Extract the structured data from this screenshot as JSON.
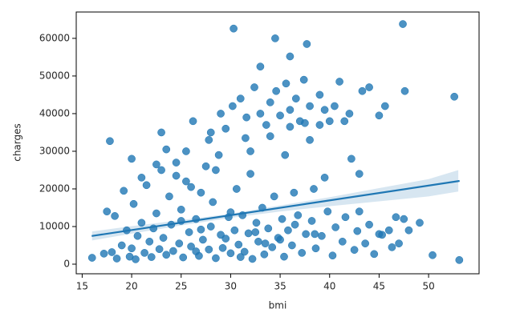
{
  "chart_data": {
    "type": "scatter",
    "x_label": "bmi",
    "y_label": "charges",
    "color": "#1f77b4",
    "x": [
      16.0,
      17.2,
      17.5,
      18.0,
      18.3,
      18.5,
      19.0,
      19.2,
      19.5,
      19.8,
      20.0,
      20.2,
      20.4,
      20.6,
      21.0,
      21.3,
      21.5,
      21.8,
      22.0,
      22.2,
      22.5,
      22.8,
      23.0,
      23.2,
      23.5,
      23.8,
      24.0,
      24.2,
      24.5,
      24.8,
      25.0,
      25.2,
      25.5,
      25.8,
      26.0,
      26.2,
      26.5,
      26.8,
      27.0,
      27.2,
      27.5,
      27.8,
      28.0,
      28.2,
      28.5,
      28.8,
      29.0,
      29.2,
      29.5,
      29.8,
      30.0,
      30.2,
      30.4,
      30.6,
      30.8,
      31.0,
      31.2,
      31.4,
      31.6,
      31.8,
      32.0,
      32.2,
      32.4,
      32.6,
      32.8,
      33.0,
      33.2,
      33.4,
      33.6,
      33.8,
      34.0,
      34.2,
      34.4,
      34.6,
      34.8,
      35.0,
      35.2,
      35.4,
      35.6,
      35.8,
      36.0,
      36.2,
      36.4,
      36.6,
      36.8,
      37.0,
      37.2,
      37.4,
      37.6,
      38.0,
      38.2,
      38.4,
      38.6,
      39.0,
      39.2,
      39.5,
      39.8,
      40.0,
      40.3,
      40.6,
      41.0,
      41.3,
      41.6,
      42.0,
      42.2,
      42.5,
      42.8,
      43.0,
      43.3,
      43.6,
      44.0,
      44.5,
      45.0,
      45.3,
      45.6,
      46.0,
      46.3,
      46.7,
      47.0,
      47.4,
      47.6,
      48.0,
      49.1,
      50.4,
      52.6,
      53.1,
      30.3,
      34.5,
      37.7,
      36.0,
      33.0,
      17.8,
      23.0,
      25.5,
      27.8,
      29.0,
      31.5,
      28.5,
      26.0,
      24.5,
      22.5,
      32.5,
      33.5,
      29.5,
      27.0,
      25.0,
      30.0,
      35.0,
      36.5,
      38.5,
      31.0,
      26.5,
      37.5,
      39.5,
      41.5,
      44.0,
      21.0,
      20.0,
      23.5,
      28.0,
      32.0,
      34.0,
      36.0,
      38.0,
      39.0,
      40.5,
      43.0,
      45.0,
      47.5,
      35.5
    ],
    "values": [
      1700,
      2800,
      14000,
      3200,
      12800,
      1500,
      5000,
      19500,
      9000,
      2000,
      4200,
      16000,
      1300,
      7500,
      11000,
      3000,
      21000,
      6000,
      1900,
      9500,
      13500,
      4000,
      25000,
      7000,
      2500,
      18000,
      10500,
      3500,
      27000,
      5500,
      14500,
      1800,
      22000,
      8500,
      4700,
      38000,
      12000,
      2200,
      19000,
      6500,
      26000,
      3900,
      10000,
      16500,
      1600,
      29000,
      7800,
      4300,
      36000,
      12500,
      2900,
      42000,
      9000,
      20000,
      5200,
      44000,
      13000,
      3300,
      39000,
      8200,
      24000,
      1400,
      47000,
      11000,
      6000,
      40000,
      15000,
      2600,
      37000,
      9500,
      43000,
      4500,
      18000,
      46000,
      7000,
      39500,
      12000,
      2000,
      48000,
      9000,
      41000,
      5000,
      19000,
      44000,
      13000,
      38000,
      3000,
      49000,
      8000,
      42000,
      11500,
      20000,
      4200,
      45000,
      7500,
      23000,
      14000,
      38000,
      2300,
      9800,
      48500,
      6000,
      12500,
      40000,
      28000,
      3800,
      8800,
      24000,
      46000,
      5500,
      10500,
      2700,
      39500,
      7800,
      42000,
      9000,
      4500,
      12500,
      5500,
      63800,
      46000,
      9000,
      11000,
      2400,
      44500,
      1100,
      62600,
      60000,
      58500,
      55200,
      52500,
      32700,
      35000,
      30000,
      33000,
      40000,
      33500,
      25000,
      20500,
      23500,
      26500,
      8500,
      5500,
      6800,
      9200,
      11500,
      13800,
      6500,
      10500,
      8000,
      1900,
      3400,
      37500,
      41000,
      38000,
      47000,
      23000,
      28000,
      30500,
      35000,
      30000,
      34000,
      36500,
      33000,
      37000,
      42000,
      14000,
      8000,
      12000,
      29000
    ],
    "regression": {
      "x": [
        15.96,
        53.13
      ],
      "y": [
        7479,
        22118
      ]
    },
    "ci": {
      "x": [
        16,
        20,
        25,
        30,
        35,
        40,
        45,
        50,
        53
      ],
      "lower": [
        6300,
        8100,
        10300,
        12300,
        14000,
        15400,
        16700,
        18000,
        19300
      ],
      "upper": [
        8700,
        10100,
        11700,
        13400,
        15600,
        17800,
        20200,
        22600,
        25000
      ]
    },
    "xlim": [
      14.4,
      55.1
    ],
    "xticks": [
      15,
      20,
      25,
      30,
      35,
      40,
      45,
      50
    ],
    "ylim": [
      -2550,
      67000
    ],
    "yticks": [
      0,
      10000,
      20000,
      30000,
      40000,
      50000,
      60000
    ]
  }
}
